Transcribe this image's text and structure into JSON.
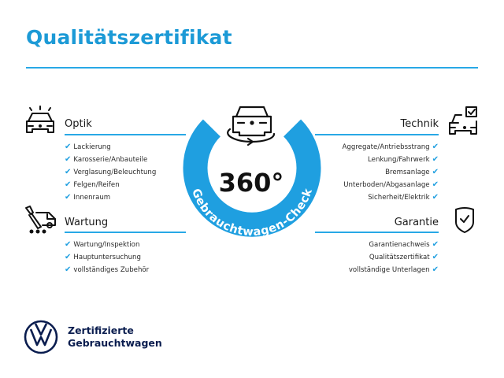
{
  "title": "Qualitätszertifikat",
  "colors": {
    "accent": "#1f9fe0",
    "brand_navy": "#0a1d4f"
  },
  "center": {
    "value": "360°",
    "ring_text": "Gebrauchtwagen-Check",
    "icon": "car-rotate-icon"
  },
  "sections": {
    "optik": {
      "title": "Optik",
      "icon": "car-lights-icon",
      "items": [
        "Lackierung",
        "Karosserie/Anbauteile",
        "Verglasung/Beleuchtung",
        "Felgen/Reifen",
        "Innenraum"
      ]
    },
    "wartung": {
      "title": "Wartung",
      "icon": "tools-car-icon",
      "items": [
        "Wartung/Inspektion",
        "Hauptuntersuchung",
        "vollständiges Zubehör"
      ]
    },
    "technik": {
      "title": "Technik",
      "icon": "car-checkbox-icon",
      "items": [
        "Aggregate/Antriebsstrang",
        "Lenkung/Fahrwerk",
        "Bremsanlage",
        "Unterboden/Abgasanlage",
        "Sicherheit/Elektrik"
      ]
    },
    "garantie": {
      "title": "Garantie",
      "icon": "shield-check-icon",
      "items": [
        "Garantienachweis",
        "Qualitätszertifikat",
        "vollständige Unterlagen"
      ]
    }
  },
  "footer": {
    "line1": "Zertifizierte",
    "line2": "Gebrauchtwagen",
    "logo": "vw-logo"
  }
}
